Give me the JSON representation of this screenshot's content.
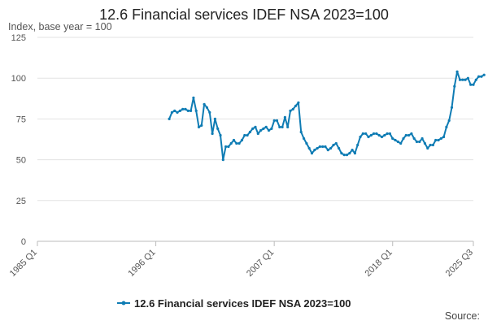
{
  "chart_data": {
    "type": "line",
    "title": "12.6 Financial services IDEF NSA 2023=100",
    "subtitle": "Index, base year = 100",
    "xlabel": "",
    "ylabel": "",
    "ylim": [
      0,
      125
    ],
    "yticks": [
      0,
      25,
      50,
      75,
      100,
      125
    ],
    "xlim": [
      1985.0,
      2025.5
    ],
    "xticks": [
      {
        "label": "1985 Q1",
        "value": 1985.0
      },
      {
        "label": "1996 Q1",
        "value": 1996.0
      },
      {
        "label": "2007 Q1",
        "value": 2007.0
      },
      {
        "label": "2018 Q1",
        "value": 2018.0
      },
      {
        "label": "2025 Q3",
        "value": 2025.5
      }
    ],
    "grid": true,
    "legend": "bottom",
    "source": "Source:",
    "color": "#0f7cb4",
    "series": [
      {
        "name": "12.6 Financial services IDEF NSA 2023=100",
        "points": [
          [
            1997.25,
            75
          ],
          [
            1997.5,
            79
          ],
          [
            1997.75,
            80
          ],
          [
            1998.0,
            79
          ],
          [
            1998.25,
            80
          ],
          [
            1998.5,
            81
          ],
          [
            1998.75,
            81
          ],
          [
            1999.0,
            80
          ],
          [
            1999.25,
            80
          ],
          [
            1999.5,
            88
          ],
          [
            1999.75,
            80
          ],
          [
            2000.0,
            70
          ],
          [
            2000.25,
            71
          ],
          [
            2000.5,
            84
          ],
          [
            2000.75,
            82
          ],
          [
            2001.0,
            79
          ],
          [
            2001.25,
            66
          ],
          [
            2001.5,
            75
          ],
          [
            2001.75,
            69
          ],
          [
            2002.0,
            65
          ],
          [
            2002.25,
            50
          ],
          [
            2002.5,
            58
          ],
          [
            2002.75,
            58
          ],
          [
            2003.0,
            60
          ],
          [
            2003.25,
            62
          ],
          [
            2003.5,
            60
          ],
          [
            2003.75,
            60
          ],
          [
            2004.0,
            62
          ],
          [
            2004.25,
            65
          ],
          [
            2004.5,
            65
          ],
          [
            2004.75,
            67
          ],
          [
            2005.0,
            69
          ],
          [
            2005.25,
            70
          ],
          [
            2005.5,
            66
          ],
          [
            2005.75,
            68
          ],
          [
            2006.0,
            69
          ],
          [
            2006.25,
            70
          ],
          [
            2006.5,
            68
          ],
          [
            2006.75,
            69
          ],
          [
            2007.0,
            74
          ],
          [
            2007.25,
            74
          ],
          [
            2007.5,
            70
          ],
          [
            2007.75,
            70
          ],
          [
            2008.0,
            76
          ],
          [
            2008.25,
            70
          ],
          [
            2008.5,
            80
          ],
          [
            2008.75,
            81
          ],
          [
            2009.0,
            83
          ],
          [
            2009.25,
            85
          ],
          [
            2009.5,
            67
          ],
          [
            2009.75,
            63
          ],
          [
            2010.0,
            60
          ],
          [
            2010.25,
            57
          ],
          [
            2010.5,
            54
          ],
          [
            2010.75,
            56
          ],
          [
            2011.0,
            57
          ],
          [
            2011.25,
            58
          ],
          [
            2011.5,
            58
          ],
          [
            2011.75,
            58
          ],
          [
            2012.0,
            56
          ],
          [
            2012.25,
            57
          ],
          [
            2012.5,
            59
          ],
          [
            2012.75,
            60
          ],
          [
            2013.0,
            57
          ],
          [
            2013.25,
            54
          ],
          [
            2013.5,
            53
          ],
          [
            2013.75,
            53
          ],
          [
            2014.0,
            54
          ],
          [
            2014.25,
            56
          ],
          [
            2014.5,
            54
          ],
          [
            2014.75,
            59
          ],
          [
            2015.0,
            64
          ],
          [
            2015.25,
            66
          ],
          [
            2015.5,
            66
          ],
          [
            2015.75,
            64
          ],
          [
            2016.0,
            65
          ],
          [
            2016.25,
            66
          ],
          [
            2016.5,
            66
          ],
          [
            2016.75,
            65
          ],
          [
            2017.0,
            64
          ],
          [
            2017.25,
            65
          ],
          [
            2017.5,
            66
          ],
          [
            2017.75,
            66
          ],
          [
            2018.0,
            63
          ],
          [
            2018.25,
            62
          ],
          [
            2018.5,
            61
          ],
          [
            2018.75,
            60
          ],
          [
            2019.0,
            63
          ],
          [
            2019.25,
            65
          ],
          [
            2019.5,
            65
          ],
          [
            2019.75,
            66
          ],
          [
            2020.0,
            63
          ],
          [
            2020.25,
            61
          ],
          [
            2020.5,
            61
          ],
          [
            2020.75,
            63
          ],
          [
            2021.0,
            60
          ],
          [
            2021.25,
            57
          ],
          [
            2021.5,
            59
          ],
          [
            2021.75,
            59
          ],
          [
            2022.0,
            62
          ],
          [
            2022.25,
            62
          ],
          [
            2022.5,
            63
          ],
          [
            2022.75,
            64
          ],
          [
            2023.0,
            70
          ],
          [
            2023.25,
            74
          ],
          [
            2023.5,
            82
          ],
          [
            2023.75,
            95
          ],
          [
            2024.0,
            104
          ],
          [
            2024.25,
            99
          ],
          [
            2024.5,
            99
          ],
          [
            2024.75,
            99
          ],
          [
            2025.0,
            100
          ],
          [
            2025.25,
            96
          ],
          [
            2025.5,
            96
          ],
          [
            2025.75,
            99
          ],
          [
            2026.0,
            101
          ],
          [
            2026.25,
            101
          ],
          [
            2026.5,
            102
          ]
        ]
      }
    ]
  }
}
